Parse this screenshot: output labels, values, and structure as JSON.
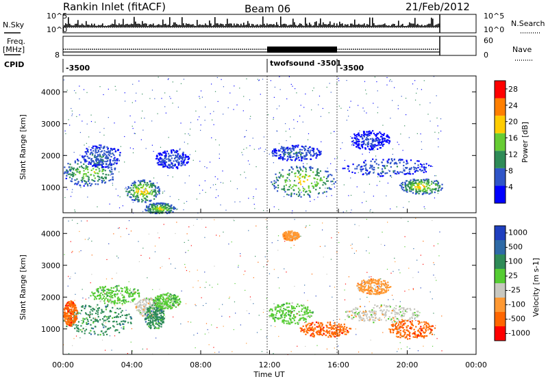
{
  "header": {
    "station": "Rankin Inlet (fitACF)",
    "beam": "Beam 06",
    "date": "21/Feb/2012"
  },
  "top_panels": {
    "nsky_label": "N.Sky",
    "nsky_ticks": [
      "10^5",
      "10^0"
    ],
    "nsearch_label": "N.Search",
    "freq_label": "Freq.",
    "freq_unit": "[MHz]",
    "freq_ticks": [
      "8"
    ],
    "nave_label": "Nave",
    "nave_ticks": [
      "60",
      "0"
    ],
    "cpid_label": "CPID",
    "cpid_segments": [
      {
        "label": "-3500",
        "start": "00:00",
        "end": "12:00"
      },
      {
        "label": "twofsound -3501",
        "start": "12:00",
        "end": "16:00"
      },
      {
        "label": "-3500",
        "start": "16:00",
        "end": "22:00"
      }
    ]
  },
  "chart_data": [
    {
      "type": "heatmap",
      "title": "",
      "ylabel": "Slant Range [km]",
      "yticks": [
        "1000",
        "2000",
        "3000",
        "4000"
      ],
      "ylim": [
        200,
        4500
      ],
      "colorbar_label": "Power [dB]",
      "colorbar_ticks": [
        "4",
        "8",
        "12",
        "16",
        "20",
        "24",
        "28"
      ],
      "colorbar_range": [
        0,
        30
      ],
      "colorbar_colors": [
        "#0000ff",
        "#2f55c8",
        "#2e8b57",
        "#66cc33",
        "#ffcc00",
        "#ff7f00",
        "#ff0000"
      ],
      "blobs": [
        {
          "t": 1.5,
          "r": 1500,
          "dt": 1.6,
          "dr": 450,
          "v": 18
        },
        {
          "t": 2.2,
          "r": 2000,
          "dt": 1.2,
          "dr": 350,
          "v": 10
        },
        {
          "t": 4.6,
          "r": 900,
          "dt": 1.0,
          "dr": 350,
          "v": 22
        },
        {
          "t": 5.6,
          "r": 350,
          "dt": 0.9,
          "dr": 180,
          "v": 20
        },
        {
          "t": 6.3,
          "r": 1900,
          "dt": 1.0,
          "dr": 300,
          "v": 8
        },
        {
          "t": 13.9,
          "r": 1200,
          "dt": 1.9,
          "dr": 500,
          "v": 22
        },
        {
          "t": 13.5,
          "r": 2100,
          "dt": 1.5,
          "dr": 250,
          "v": 10
        },
        {
          "t": 18.8,
          "r": 1650,
          "dt": 2.6,
          "dr": 280,
          "v": 10
        },
        {
          "t": 20.8,
          "r": 1050,
          "dt": 1.3,
          "dr": 250,
          "v": 22
        },
        {
          "t": 17.8,
          "r": 2500,
          "dt": 1.2,
          "dr": 300,
          "v": 6
        }
      ]
    },
    {
      "type": "heatmap",
      "title": "",
      "ylabel": "Slant Range [km]",
      "yticks": [
        "1000",
        "2000",
        "3000",
        "4000"
      ],
      "ylim": [
        200,
        4500
      ],
      "xlabel": "Time UT",
      "xticks": [
        "00:00",
        "04:00",
        "08:00",
        "12:00",
        "16:00",
        "20:00",
        "00:00"
      ],
      "xlim": [
        0,
        24
      ],
      "colorbar_label": "Velocity [m s-1]",
      "colorbar_ticks": [
        "1000",
        "500",
        "100",
        "25",
        "-25",
        "-100",
        "-500",
        "-1000"
      ],
      "colorbar_colors": [
        "#1f3fbf",
        "#2e6aa6",
        "#2e8b57",
        "#55cc33",
        "#c8c8c0",
        "#ff9933",
        "#ff6600",
        "#ff0000"
      ],
      "blobs": [
        {
          "t": 2.0,
          "r": 1300,
          "dt": 2.0,
          "dr": 500,
          "c": 2
        },
        {
          "t": 0.4,
          "r": 1500,
          "dt": 0.4,
          "dr": 400,
          "c": 6
        },
        {
          "t": 3.0,
          "r": 2100,
          "dt": 1.5,
          "dr": 300,
          "c": 3
        },
        {
          "t": 5.0,
          "r": 1700,
          "dt": 0.9,
          "dr": 300,
          "c": 4
        },
        {
          "t": 5.3,
          "r": 1400,
          "dt": 0.6,
          "dr": 400,
          "c": 2
        },
        {
          "t": 6.0,
          "r": 1900,
          "dt": 0.8,
          "dr": 250,
          "c": 3
        },
        {
          "t": 13.2,
          "r": 1500,
          "dt": 1.3,
          "dr": 350,
          "c": 3
        },
        {
          "t": 15.2,
          "r": 1000,
          "dt": 1.5,
          "dr": 250,
          "c": 6
        },
        {
          "t": 18.5,
          "r": 1500,
          "dt": 2.2,
          "dr": 280,
          "c": 4
        },
        {
          "t": 20.2,
          "r": 1000,
          "dt": 1.4,
          "dr": 300,
          "c": 6
        },
        {
          "t": 18.0,
          "r": 2350,
          "dt": 1.0,
          "dr": 250,
          "c": 5
        },
        {
          "t": 13.2,
          "r": 3950,
          "dt": 0.5,
          "dr": 150,
          "c": 5
        }
      ]
    }
  ]
}
